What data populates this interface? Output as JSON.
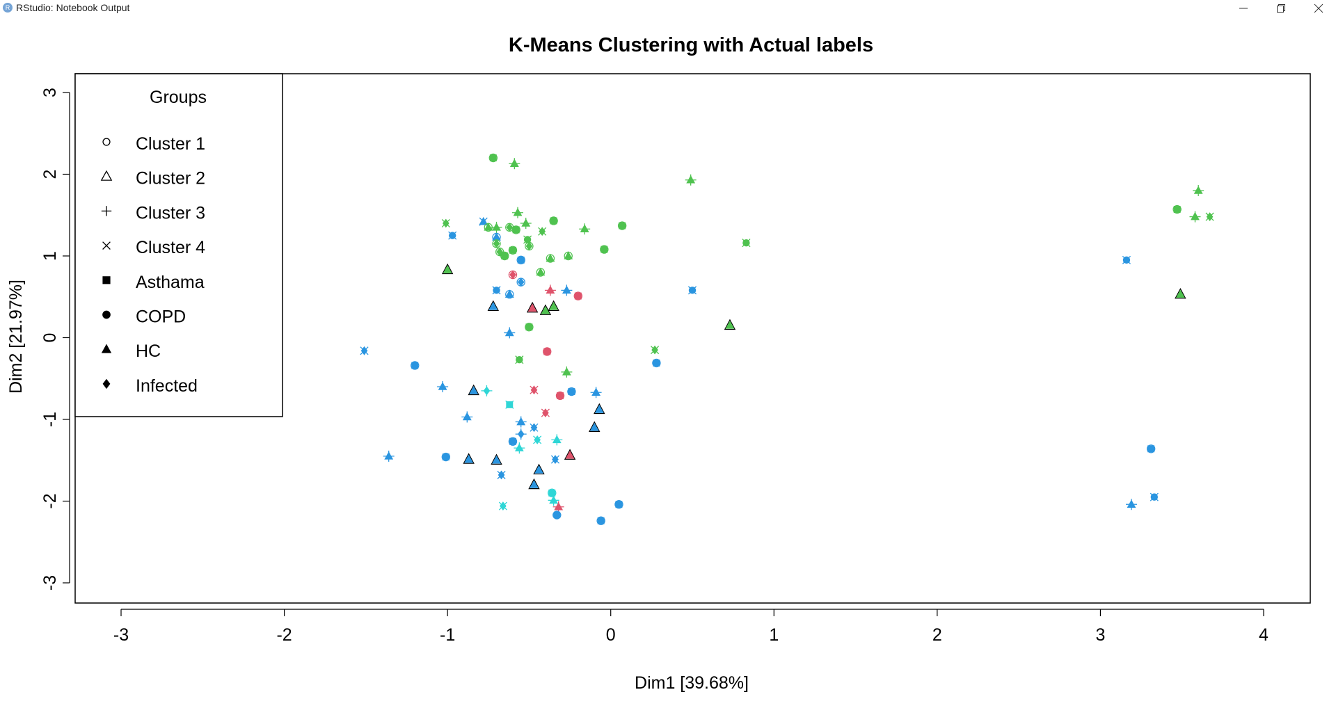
{
  "window": {
    "title": "RStudio: Notebook Output",
    "icon": "r-app-icon",
    "controls": [
      "minimize-icon",
      "restore-icon",
      "close-icon"
    ]
  },
  "chart_data": {
    "type": "scatter",
    "title": "K-Means Clustering with Actual labels",
    "xlabel": "Dim1 [39.68%]",
    "ylabel": "Dim2 [21.97%]",
    "xlim": [
      -3.3,
      4.3
    ],
    "ylim": [
      -3.25,
      3.25
    ],
    "xticks": [
      -3,
      -2,
      -1,
      0,
      1,
      2,
      3,
      4
    ],
    "yticks": [
      -3,
      -2,
      -1,
      0,
      1,
      2,
      3
    ],
    "grid": false,
    "legend": {
      "title": "Groups",
      "placement": "top-left",
      "entries": [
        {
          "label": "Cluster 1",
          "shape": "circle-open"
        },
        {
          "label": "Cluster 2",
          "shape": "triangle-open"
        },
        {
          "label": "Cluster 3",
          "shape": "plus"
        },
        {
          "label": "Cluster 4",
          "shape": "cross"
        },
        {
          "label": "Asthama",
          "shape": "square"
        },
        {
          "label": "COPD",
          "shape": "circle"
        },
        {
          "label": "HC",
          "shape": "triangle"
        },
        {
          "label": "Infected",
          "shape": "diamond"
        }
      ]
    },
    "colors": {
      "green": "#4fc24f",
      "blue": "#2a95e0",
      "red": "#df536b",
      "cyan": "#2fd6d6"
    },
    "points": [
      {
        "x": -0.72,
        "y": 2.2,
        "color": "green",
        "shape": "square",
        "cluster": "Cluster 1"
      },
      {
        "x": -0.59,
        "y": 2.13,
        "color": "green",
        "shape": "triangle",
        "cluster": "Cluster 3"
      },
      {
        "x": 0.49,
        "y": 1.93,
        "color": "green",
        "shape": "triangle",
        "cluster": "Cluster 3"
      },
      {
        "x": -1.01,
        "y": 1.4,
        "color": "green",
        "shape": "diamond",
        "cluster": "Cluster 4"
      },
      {
        "x": -0.97,
        "y": 1.25,
        "color": "blue",
        "shape": "circle",
        "cluster": "Cluster 4"
      },
      {
        "x": -0.78,
        "y": 1.42,
        "color": "blue",
        "shape": "triangle",
        "cluster": "Cluster 4"
      },
      {
        "x": -0.75,
        "y": 1.35,
        "color": "green",
        "shape": "triangle",
        "cluster": "Cluster 1"
      },
      {
        "x": -0.7,
        "y": 1.35,
        "color": "green",
        "shape": "triangle",
        "cluster": "Cluster 3"
      },
      {
        "x": -0.7,
        "y": 1.23,
        "color": "blue",
        "shape": "triangle",
        "cluster": "Cluster 1"
      },
      {
        "x": -0.62,
        "y": 1.35,
        "color": "green",
        "shape": "diamond",
        "cluster": "Cluster 1"
      },
      {
        "x": -0.57,
        "y": 1.53,
        "color": "green",
        "shape": "triangle",
        "cluster": "Cluster 3"
      },
      {
        "x": -0.58,
        "y": 1.32,
        "color": "green",
        "shape": "square",
        "cluster": "Cluster 1"
      },
      {
        "x": -0.52,
        "y": 1.4,
        "color": "green",
        "shape": "triangle",
        "cluster": "Cluster 3"
      },
      {
        "x": -0.51,
        "y": 1.2,
        "color": "green",
        "shape": "circle",
        "cluster": "Cluster 4"
      },
      {
        "x": -0.42,
        "y": 1.3,
        "color": "green",
        "shape": "diamond",
        "cluster": "Cluster 4"
      },
      {
        "x": -0.35,
        "y": 1.43,
        "color": "green",
        "shape": "square",
        "cluster": "Cluster 1"
      },
      {
        "x": -0.16,
        "y": 1.33,
        "color": "green",
        "shape": "triangle",
        "cluster": "Cluster 3"
      },
      {
        "x": 0.07,
        "y": 1.37,
        "color": "green",
        "shape": "square",
        "cluster": "Cluster 1"
      },
      {
        "x": -0.7,
        "y": 1.15,
        "color": "green",
        "shape": "diamond",
        "cluster": "Cluster 1"
      },
      {
        "x": -0.68,
        "y": 1.05,
        "color": "green",
        "shape": "diamond",
        "cluster": "Cluster 1"
      },
      {
        "x": -0.65,
        "y": 1.0,
        "color": "green",
        "shape": "square",
        "cluster": "Cluster 1"
      },
      {
        "x": -0.6,
        "y": 1.07,
        "color": "green",
        "shape": "square",
        "cluster": "Cluster 1"
      },
      {
        "x": -0.55,
        "y": 0.95,
        "color": "blue",
        "shape": "square",
        "cluster": "Cluster 1"
      },
      {
        "x": -0.5,
        "y": 1.12,
        "color": "green",
        "shape": "diamond",
        "cluster": "Cluster 1"
      },
      {
        "x": -0.37,
        "y": 0.97,
        "color": "green",
        "shape": "triangle",
        "cluster": "Cluster 1"
      },
      {
        "x": -0.26,
        "y": 1.0,
        "color": "green",
        "shape": "triangle",
        "cluster": "Cluster 1"
      },
      {
        "x": -0.04,
        "y": 1.08,
        "color": "green",
        "shape": "square",
        "cluster": "Cluster 1"
      },
      {
        "x": 0.83,
        "y": 1.16,
        "color": "green",
        "shape": "circle",
        "cluster": "Cluster 4"
      },
      {
        "x": -1.0,
        "y": 0.83,
        "color": "green",
        "shape": "triangle",
        "cluster": "Cluster 2"
      },
      {
        "x": -0.6,
        "y": 0.77,
        "color": "red",
        "shape": "diamond",
        "cluster": "Cluster 1"
      },
      {
        "x": -0.55,
        "y": 0.68,
        "color": "blue",
        "shape": "diamond",
        "cluster": "Cluster 1"
      },
      {
        "x": -0.43,
        "y": 0.8,
        "color": "green",
        "shape": "triangle",
        "cluster": "Cluster 1"
      },
      {
        "x": -0.7,
        "y": 0.58,
        "color": "blue",
        "shape": "circle",
        "cluster": "Cluster 4"
      },
      {
        "x": -0.62,
        "y": 0.53,
        "color": "blue",
        "shape": "triangle",
        "cluster": "Cluster 1"
      },
      {
        "x": -0.72,
        "y": 0.38,
        "color": "blue",
        "shape": "triangle",
        "cluster": "Cluster 2"
      },
      {
        "x": -0.37,
        "y": 0.58,
        "color": "red",
        "shape": "triangle",
        "cluster": "Cluster 3"
      },
      {
        "x": -0.27,
        "y": 0.58,
        "color": "blue",
        "shape": "triangle",
        "cluster": "Cluster 3"
      },
      {
        "x": -0.2,
        "y": 0.51,
        "color": "red",
        "shape": "square",
        "cluster": "Cluster 1"
      },
      {
        "x": -0.48,
        "y": 0.36,
        "color": "red",
        "shape": "triangle",
        "cluster": "Cluster 2"
      },
      {
        "x": -0.4,
        "y": 0.33,
        "color": "green",
        "shape": "triangle",
        "cluster": "Cluster 2"
      },
      {
        "x": -0.35,
        "y": 0.38,
        "color": "green",
        "shape": "triangle",
        "cluster": "Cluster 2"
      },
      {
        "x": -0.5,
        "y": 0.13,
        "color": "green",
        "shape": "square",
        "cluster": "Cluster 1"
      },
      {
        "x": 0.5,
        "y": 0.58,
        "color": "blue",
        "shape": "circle",
        "cluster": "Cluster 4"
      },
      {
        "x": 0.73,
        "y": 0.15,
        "color": "green",
        "shape": "triangle",
        "cluster": "Cluster 2"
      },
      {
        "x": -0.62,
        "y": 0.06,
        "color": "blue",
        "shape": "triangle",
        "cluster": "Cluster 3"
      },
      {
        "x": -1.51,
        "y": -0.16,
        "color": "blue",
        "shape": "diamond",
        "cluster": "Cluster 4"
      },
      {
        "x": -1.2,
        "y": -0.34,
        "color": "blue",
        "shape": "square",
        "cluster": "Cluster 1"
      },
      {
        "x": -0.56,
        "y": -0.27,
        "color": "green",
        "shape": "circle",
        "cluster": "Cluster 4"
      },
      {
        "x": -0.39,
        "y": -0.17,
        "color": "red",
        "shape": "square",
        "cluster": "Cluster 1"
      },
      {
        "x": -0.27,
        "y": -0.42,
        "color": "green",
        "shape": "triangle",
        "cluster": "Cluster 3"
      },
      {
        "x": 0.27,
        "y": -0.15,
        "color": "green",
        "shape": "diamond",
        "cluster": "Cluster 4"
      },
      {
        "x": 0.28,
        "y": -0.31,
        "color": "blue",
        "shape": "square",
        "cluster": "Cluster 1"
      },
      {
        "x": -1.03,
        "y": -0.6,
        "color": "blue",
        "shape": "triangle",
        "cluster": "Cluster 3"
      },
      {
        "x": -0.84,
        "y": -0.65,
        "color": "blue",
        "shape": "triangle",
        "cluster": "Cluster 2"
      },
      {
        "x": -0.76,
        "y": -0.65,
        "color": "cyan",
        "shape": "diamond",
        "cluster": "Cluster 3"
      },
      {
        "x": -0.62,
        "y": -0.82,
        "color": "cyan",
        "shape": "square",
        "cluster": "Cluster 4"
      },
      {
        "x": -0.47,
        "y": -0.64,
        "color": "red",
        "shape": "diamond",
        "cluster": "Cluster 4"
      },
      {
        "x": -0.31,
        "y": -0.71,
        "color": "red",
        "shape": "square",
        "cluster": "Cluster 1"
      },
      {
        "x": -0.24,
        "y": -0.66,
        "color": "blue",
        "shape": "square",
        "cluster": "Cluster 1"
      },
      {
        "x": -0.09,
        "y": -0.67,
        "color": "blue",
        "shape": "triangle",
        "cluster": "Cluster 3"
      },
      {
        "x": -0.07,
        "y": -0.88,
        "color": "blue",
        "shape": "triangle",
        "cluster": "Cluster 2"
      },
      {
        "x": -0.4,
        "y": -0.92,
        "color": "red",
        "shape": "diamond",
        "cluster": "Cluster 4"
      },
      {
        "x": -0.88,
        "y": -0.97,
        "color": "blue",
        "shape": "triangle",
        "cluster": "Cluster 3"
      },
      {
        "x": -0.55,
        "y": -1.03,
        "color": "blue",
        "shape": "triangle",
        "cluster": "Cluster 3"
      },
      {
        "x": -0.47,
        "y": -1.1,
        "color": "blue",
        "shape": "diamond",
        "cluster": "Cluster 4"
      },
      {
        "x": -0.1,
        "y": -1.1,
        "color": "blue",
        "shape": "triangle",
        "cluster": "Cluster 2"
      },
      {
        "x": -0.55,
        "y": -1.18,
        "color": "blue",
        "shape": "diamond",
        "cluster": "Cluster 3"
      },
      {
        "x": -0.6,
        "y": -1.27,
        "color": "blue",
        "shape": "square",
        "cluster": "Cluster 1"
      },
      {
        "x": -0.45,
        "y": -1.25,
        "color": "cyan",
        "shape": "diamond",
        "cluster": "Cluster 4"
      },
      {
        "x": -0.33,
        "y": -1.25,
        "color": "cyan",
        "shape": "triangle",
        "cluster": "Cluster 3"
      },
      {
        "x": -0.56,
        "y": -1.35,
        "color": "cyan",
        "shape": "triangle",
        "cluster": "Cluster 3"
      },
      {
        "x": -1.36,
        "y": -1.45,
        "color": "blue",
        "shape": "triangle",
        "cluster": "Cluster 3"
      },
      {
        "x": -1.01,
        "y": -1.46,
        "color": "blue",
        "shape": "square",
        "cluster": "Cluster 1"
      },
      {
        "x": -0.87,
        "y": -1.49,
        "color": "blue",
        "shape": "triangle",
        "cluster": "Cluster 2"
      },
      {
        "x": -0.7,
        "y": -1.5,
        "color": "blue",
        "shape": "triangle",
        "cluster": "Cluster 2"
      },
      {
        "x": -0.34,
        "y": -1.49,
        "color": "blue",
        "shape": "diamond",
        "cluster": "Cluster 4"
      },
      {
        "x": -0.25,
        "y": -1.44,
        "color": "red",
        "shape": "triangle",
        "cluster": "Cluster 2"
      },
      {
        "x": -0.44,
        "y": -1.62,
        "color": "blue",
        "shape": "triangle",
        "cluster": "Cluster 2"
      },
      {
        "x": -0.67,
        "y": -1.68,
        "color": "blue",
        "shape": "diamond",
        "cluster": "Cluster 4"
      },
      {
        "x": -0.47,
        "y": -1.8,
        "color": "blue",
        "shape": "triangle",
        "cluster": "Cluster 2"
      },
      {
        "x": -0.36,
        "y": -1.9,
        "color": "cyan",
        "shape": "square",
        "cluster": "Cluster 1"
      },
      {
        "x": -0.35,
        "y": -1.99,
        "color": "cyan",
        "shape": "triangle",
        "cluster": "Cluster 3"
      },
      {
        "x": -0.66,
        "y": -2.06,
        "color": "cyan",
        "shape": "diamond",
        "cluster": "Cluster 4"
      },
      {
        "x": -0.32,
        "y": -2.07,
        "color": "red",
        "shape": "triangle",
        "cluster": "Cluster 3"
      },
      {
        "x": -0.33,
        "y": -2.17,
        "color": "blue",
        "shape": "circle",
        "cluster": "Cluster 1"
      },
      {
        "x": 0.05,
        "y": -2.04,
        "color": "blue",
        "shape": "square",
        "cluster": "Cluster 1"
      },
      {
        "x": -0.06,
        "y": -2.24,
        "color": "blue",
        "shape": "square",
        "cluster": "Cluster 1"
      },
      {
        "x": 3.16,
        "y": 0.95,
        "color": "blue",
        "shape": "circle",
        "cluster": "Cluster 4"
      },
      {
        "x": 3.47,
        "y": 1.57,
        "color": "green",
        "shape": "square",
        "cluster": "Cluster 1"
      },
      {
        "x": 3.6,
        "y": 1.8,
        "color": "green",
        "shape": "triangle",
        "cluster": "Cluster 3"
      },
      {
        "x": 3.58,
        "y": 1.48,
        "color": "green",
        "shape": "triangle",
        "cluster": "Cluster 3"
      },
      {
        "x": 3.67,
        "y": 1.48,
        "color": "green",
        "shape": "diamond",
        "cluster": "Cluster 4"
      },
      {
        "x": 3.49,
        "y": 0.53,
        "color": "green",
        "shape": "triangle",
        "cluster": "Cluster 2"
      },
      {
        "x": 3.31,
        "y": -1.36,
        "color": "blue",
        "shape": "square",
        "cluster": "Cluster 1"
      },
      {
        "x": 3.19,
        "y": -2.04,
        "color": "blue",
        "shape": "triangle",
        "cluster": "Cluster 3"
      },
      {
        "x": 3.33,
        "y": -1.95,
        "color": "blue",
        "shape": "circle",
        "cluster": "Cluster 4"
      }
    ]
  }
}
